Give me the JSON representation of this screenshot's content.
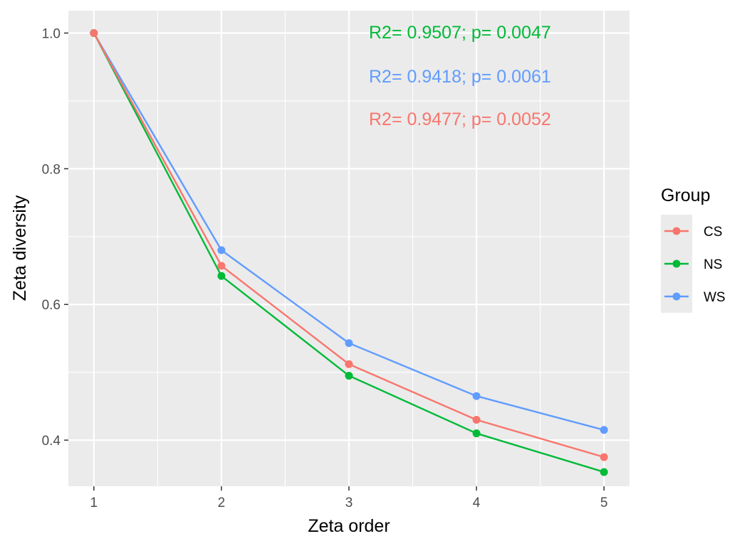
{
  "chart_data": {
    "type": "line",
    "title": "",
    "xlabel": "Zeta order",
    "ylabel": "Zeta diversity",
    "x": [
      1,
      2,
      3,
      4,
      5
    ],
    "x_ticks": [
      "1",
      "2",
      "3",
      "4",
      "5"
    ],
    "y_ticks": [
      "0.4",
      "0.6",
      "0.8",
      "1.0"
    ],
    "y_tick_values": [
      0.4,
      0.6,
      0.8,
      1.0
    ],
    "xlim": [
      0.8,
      5.2
    ],
    "ylim": [
      0.332,
      1.033
    ],
    "grid": true,
    "legend": {
      "title": "Group",
      "position": "right"
    },
    "series": [
      {
        "name": "CS",
        "color": "#F8766D",
        "values": [
          1.0,
          0.657,
          0.512,
          0.43,
          0.375
        ]
      },
      {
        "name": "NS",
        "color": "#00BA38",
        "values": [
          1.0,
          0.642,
          0.495,
          0.41,
          0.353
        ]
      },
      {
        "name": "WS",
        "color": "#619CFF",
        "values": [
          1.0,
          0.68,
          0.543,
          0.465,
          0.415
        ]
      }
    ],
    "annotations": [
      {
        "text": "R2= 0.9507; p= 0.0047",
        "color": "#00BA38"
      },
      {
        "text": "R2= 0.9418; p= 0.0061",
        "color": "#619CFF"
      },
      {
        "text": "R2= 0.9477; p= 0.0052",
        "color": "#F8766D"
      }
    ]
  }
}
